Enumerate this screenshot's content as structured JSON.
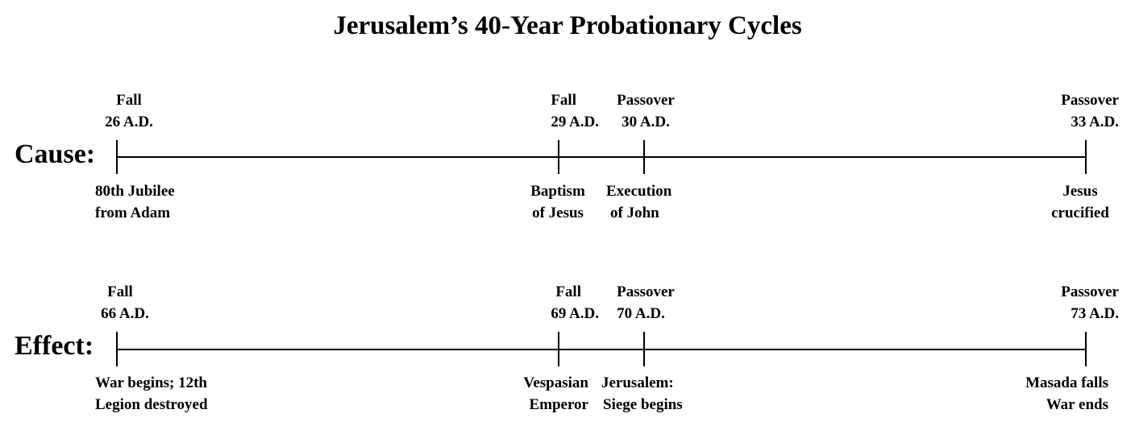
{
  "title": "Jerusalem’s 40-Year Probationary Cycles",
  "cause": {
    "label": "Cause:",
    "events": [
      {
        "date_l1": "Fall",
        "date_l2": "26 A.D.",
        "desc_l1": "80th Jubilee",
        "desc_l2": "from Adam"
      },
      {
        "date_l1": "Fall",
        "date_l2": "29 A.D.",
        "desc_l1": "Baptism",
        "desc_l2": "of Jesus"
      },
      {
        "date_l1": "Passover",
        "date_l2": "30 A.D.",
        "desc_l1": "Execution",
        "desc_l2": "of John"
      },
      {
        "date_l1": "Passover",
        "date_l2": "33 A.D.",
        "desc_l1": "Jesus",
        "desc_l2": "crucified"
      }
    ]
  },
  "effect": {
    "label": "Effect:",
    "events": [
      {
        "date_l1": "Fall",
        "date_l2": "66 A.D.",
        "desc_l1": "War begins; 12th",
        "desc_l2": "Legion destroyed"
      },
      {
        "date_l1": "Fall",
        "date_l2": "69 A.D.",
        "desc_l1": "Vespasian",
        "desc_l2": "Emperor"
      },
      {
        "date_l1": "Passover",
        "date_l2": "70 A.D.",
        "desc_l1": "Jerusalem:",
        "desc_l2": "Siege begins"
      },
      {
        "date_l1": "Passover",
        "date_l2": "73 A.D.",
        "desc_l1": "Masada falls",
        "desc_l2": "War ends"
      }
    ]
  }
}
